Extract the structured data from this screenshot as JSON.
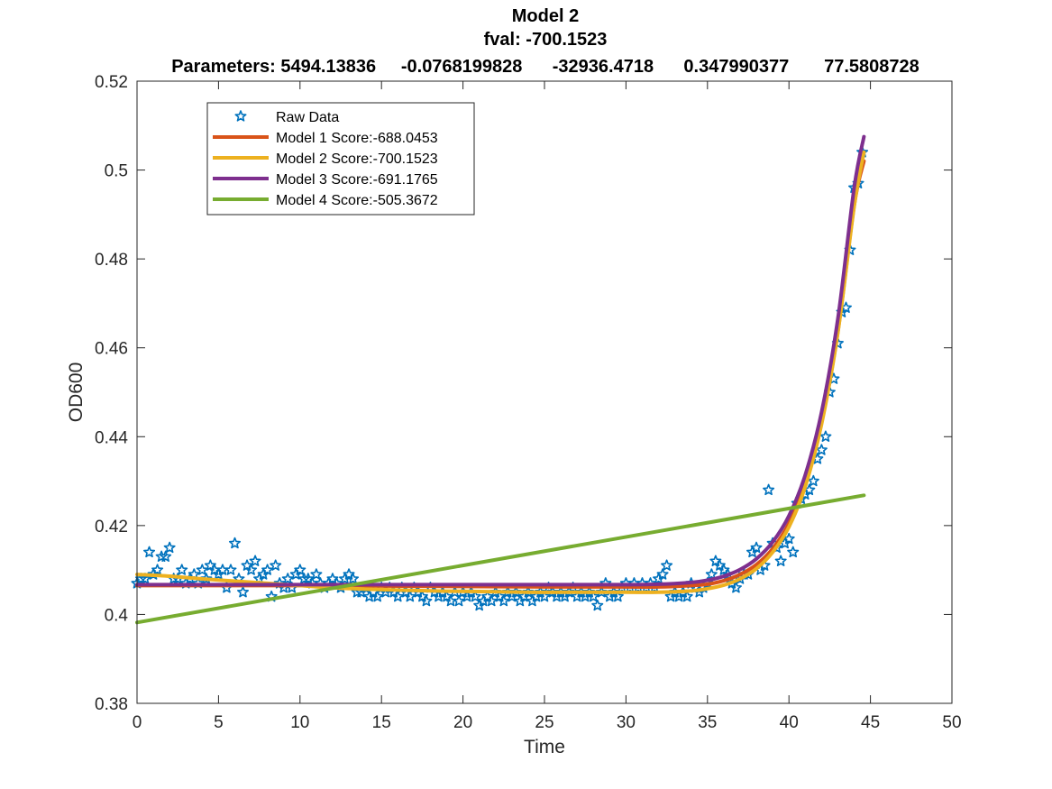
{
  "chart_data": {
    "type": "line",
    "title": "Model 2",
    "subtitle": "fval: -700.1523",
    "parameters_line": "Parameters: 5494.13836     -0.0768199828      -32936.4718      0.347990377       77.5808728",
    "xlabel": "Time",
    "ylabel": "OD600",
    "xlim": [
      0,
      50
    ],
    "ylim": [
      0.38,
      0.52
    ],
    "xticks": [
      0,
      5,
      10,
      15,
      20,
      25,
      30,
      35,
      40,
      45,
      50
    ],
    "yticks": [
      0.38,
      0.4,
      0.42,
      0.44,
      0.46,
      0.48,
      0.5,
      0.52
    ],
    "xtick_labels": [
      "0",
      "5",
      "10",
      "15",
      "20",
      "25",
      "30",
      "35",
      "40",
      "45",
      "50"
    ],
    "ytick_labels": [
      "0.38",
      "0.4",
      "0.42",
      "0.44",
      "0.46",
      "0.48",
      "0.5",
      "0.52"
    ],
    "grid": false,
    "legend_position": "top-left",
    "raw_data": {
      "name": "Raw Data",
      "marker": "star",
      "color": "#0072BD",
      "points": [
        [
          0.0,
          0.407
        ],
        [
          0.25,
          0.408
        ],
        [
          0.5,
          0.408
        ],
        [
          0.75,
          0.414
        ],
        [
          1.0,
          0.409
        ],
        [
          1.25,
          0.41
        ],
        [
          1.5,
          0.413
        ],
        [
          1.75,
          0.413
        ],
        [
          2.0,
          0.415
        ],
        [
          2.25,
          0.408
        ],
        [
          2.5,
          0.408
        ],
        [
          2.75,
          0.41
        ],
        [
          3.0,
          0.407
        ],
        [
          3.25,
          0.408
        ],
        [
          3.5,
          0.409
        ],
        [
          3.75,
          0.407
        ],
        [
          4.0,
          0.41
        ],
        [
          4.25,
          0.408
        ],
        [
          4.5,
          0.411
        ],
        [
          4.75,
          0.41
        ],
        [
          5.0,
          0.409
        ],
        [
          5.25,
          0.41
        ],
        [
          5.5,
          0.406
        ],
        [
          5.75,
          0.41
        ],
        [
          6.0,
          0.416
        ],
        [
          6.25,
          0.408
        ],
        [
          6.5,
          0.405
        ],
        [
          6.75,
          0.411
        ],
        [
          7.0,
          0.41
        ],
        [
          7.25,
          0.412
        ],
        [
          7.5,
          0.408
        ],
        [
          7.75,
          0.409
        ],
        [
          8.0,
          0.41
        ],
        [
          8.25,
          0.404
        ],
        [
          8.5,
          0.411
        ],
        [
          8.75,
          0.407
        ],
        [
          9.0,
          0.406
        ],
        [
          9.25,
          0.408
        ],
        [
          9.5,
          0.406
        ],
        [
          9.75,
          0.409
        ],
        [
          10.0,
          0.41
        ],
        [
          10.25,
          0.408
        ],
        [
          10.5,
          0.408
        ],
        [
          10.75,
          0.407
        ],
        [
          11.0,
          0.409
        ],
        [
          11.25,
          0.407
        ],
        [
          11.5,
          0.406
        ],
        [
          11.75,
          0.407
        ],
        [
          12.0,
          0.408
        ],
        [
          12.25,
          0.407
        ],
        [
          12.5,
          0.406
        ],
        [
          12.75,
          0.408
        ],
        [
          13.0,
          0.409
        ],
        [
          13.25,
          0.408
        ],
        [
          13.5,
          0.405
        ],
        [
          13.75,
          0.405
        ],
        [
          14.0,
          0.406
        ],
        [
          14.25,
          0.404
        ],
        [
          14.5,
          0.405
        ],
        [
          14.75,
          0.404
        ],
        [
          15.0,
          0.406
        ],
        [
          15.25,
          0.405
        ],
        [
          15.5,
          0.406
        ],
        [
          15.75,
          0.405
        ],
        [
          16.0,
          0.404
        ],
        [
          16.25,
          0.406
        ],
        [
          16.5,
          0.405
        ],
        [
          16.75,
          0.404
        ],
        [
          17.0,
          0.406
        ],
        [
          17.25,
          0.405
        ],
        [
          17.5,
          0.404
        ],
        [
          17.75,
          0.403
        ],
        [
          18.0,
          0.406
        ],
        [
          18.25,
          0.405
        ],
        [
          18.5,
          0.404
        ],
        [
          18.75,
          0.405
        ],
        [
          19.0,
          0.404
        ],
        [
          19.25,
          0.403
        ],
        [
          19.5,
          0.405
        ],
        [
          19.75,
          0.403
        ],
        [
          20.0,
          0.405
        ],
        [
          20.25,
          0.404
        ],
        [
          20.5,
          0.405
        ],
        [
          20.75,
          0.404
        ],
        [
          21.0,
          0.402
        ],
        [
          21.25,
          0.403
        ],
        [
          21.5,
          0.404
        ],
        [
          21.75,
          0.403
        ],
        [
          22.0,
          0.405
        ],
        [
          22.25,
          0.404
        ],
        [
          22.5,
          0.403
        ],
        [
          22.75,
          0.405
        ],
        [
          23.0,
          0.404
        ],
        [
          23.25,
          0.405
        ],
        [
          23.5,
          0.403
        ],
        [
          23.75,
          0.404
        ],
        [
          24.0,
          0.405
        ],
        [
          24.25,
          0.403
        ],
        [
          24.5,
          0.404
        ],
        [
          24.75,
          0.405
        ],
        [
          25.0,
          0.404
        ],
        [
          25.25,
          0.406
        ],
        [
          25.5,
          0.405
        ],
        [
          25.75,
          0.404
        ],
        [
          26.0,
          0.405
        ],
        [
          26.25,
          0.404
        ],
        [
          26.5,
          0.405
        ],
        [
          26.75,
          0.406
        ],
        [
          27.0,
          0.404
        ],
        [
          27.25,
          0.405
        ],
        [
          27.5,
          0.404
        ],
        [
          27.75,
          0.405
        ],
        [
          28.0,
          0.404
        ],
        [
          28.25,
          0.402
        ],
        [
          28.5,
          0.405
        ],
        [
          28.75,
          0.407
        ],
        [
          29.0,
          0.404
        ],
        [
          29.25,
          0.405
        ],
        [
          29.5,
          0.404
        ],
        [
          29.75,
          0.406
        ],
        [
          30.0,
          0.407
        ],
        [
          30.25,
          0.406
        ],
        [
          30.5,
          0.407
        ],
        [
          30.75,
          0.406
        ],
        [
          31.0,
          0.407
        ],
        [
          31.25,
          0.406
        ],
        [
          31.5,
          0.407
        ],
        [
          31.75,
          0.406
        ],
        [
          32.0,
          0.408
        ],
        [
          32.25,
          0.409
        ],
        [
          32.5,
          0.411
        ],
        [
          32.75,
          0.404
        ],
        [
          33.0,
          0.405
        ],
        [
          33.25,
          0.404
        ],
        [
          33.5,
          0.405
        ],
        [
          33.75,
          0.404
        ],
        [
          34.0,
          0.407
        ],
        [
          34.25,
          0.406
        ],
        [
          34.5,
          0.405
        ],
        [
          34.75,
          0.406
        ],
        [
          35.0,
          0.407
        ],
        [
          35.25,
          0.409
        ],
        [
          35.5,
          0.412
        ],
        [
          35.75,
          0.411
        ],
        [
          36.0,
          0.41
        ],
        [
          36.25,
          0.409
        ],
        [
          36.5,
          0.407
        ],
        [
          36.75,
          0.406
        ],
        [
          37.0,
          0.408
        ],
        [
          37.25,
          0.409
        ],
        [
          37.5,
          0.409
        ],
        [
          37.75,
          0.414
        ],
        [
          38.0,
          0.415
        ],
        [
          38.25,
          0.41
        ],
        [
          38.5,
          0.411
        ],
        [
          38.75,
          0.428
        ],
        [
          39.0,
          0.416
        ],
        [
          39.25,
          0.415
        ],
        [
          39.5,
          0.412
        ],
        [
          39.75,
          0.416
        ],
        [
          40.0,
          0.417
        ],
        [
          40.25,
          0.414
        ],
        [
          40.5,
          0.425
        ],
        [
          40.75,
          0.426
        ],
        [
          41.0,
          0.427
        ],
        [
          41.25,
          0.428
        ],
        [
          41.5,
          0.43
        ],
        [
          41.75,
          0.435
        ],
        [
          42.0,
          0.437
        ],
        [
          42.25,
          0.44
        ],
        [
          42.5,
          0.45
        ],
        [
          42.75,
          0.453
        ],
        [
          43.0,
          0.461
        ],
        [
          43.25,
          0.468
        ],
        [
          43.5,
          0.469
        ],
        [
          43.75,
          0.482
        ],
        [
          44.0,
          0.496
        ],
        [
          44.25,
          0.497
        ],
        [
          44.5,
          0.504
        ]
      ]
    },
    "series": [
      {
        "name": "Model 1 Score:-688.0453",
        "color": "#D95319",
        "points": [
          [
            0,
            0.4065
          ],
          [
            5,
            0.4065
          ],
          [
            10,
            0.4065
          ],
          [
            15,
            0.4064
          ],
          [
            20,
            0.4063
          ],
          [
            25,
            0.4062
          ],
          [
            30,
            0.4062
          ],
          [
            32,
            0.4062
          ],
          [
            34,
            0.4065
          ],
          [
            35,
            0.4068
          ],
          [
            36,
            0.4076
          ],
          [
            37,
            0.409
          ],
          [
            38,
            0.4112
          ],
          [
            39,
            0.4148
          ],
          [
            40,
            0.4205
          ],
          [
            41,
            0.4295
          ],
          [
            42,
            0.4432
          ],
          [
            43,
            0.4636
          ],
          [
            44,
            0.492
          ],
          [
            44.6,
            0.502
          ]
        ]
      },
      {
        "name": "Model 2 Score:-700.1523",
        "color": "#EDB120",
        "points": [
          [
            0,
            0.409
          ],
          [
            2,
            0.4086
          ],
          [
            4,
            0.408
          ],
          [
            6,
            0.4075
          ],
          [
            8,
            0.407
          ],
          [
            10,
            0.4065
          ],
          [
            12,
            0.406
          ],
          [
            14,
            0.4057
          ],
          [
            16,
            0.4055
          ],
          [
            18,
            0.4053
          ],
          [
            20,
            0.4052
          ],
          [
            22,
            0.4051
          ],
          [
            24,
            0.405
          ],
          [
            26,
            0.405
          ],
          [
            28,
            0.405
          ],
          [
            30,
            0.405
          ],
          [
            32,
            0.405
          ],
          [
            34,
            0.4053
          ],
          [
            35,
            0.4058
          ],
          [
            36,
            0.4066
          ],
          [
            37,
            0.408
          ],
          [
            38,
            0.4103
          ],
          [
            39,
            0.414
          ],
          [
            40,
            0.4197
          ],
          [
            41,
            0.4288
          ],
          [
            42,
            0.4428
          ],
          [
            43,
            0.4634
          ],
          [
            44,
            0.4918
          ],
          [
            44.6,
            0.504
          ]
        ]
      },
      {
        "name": "Model 3 Score:-691.1765",
        "color": "#7E2F8E",
        "points": [
          [
            0,
            0.4067
          ],
          [
            5,
            0.4067
          ],
          [
            10,
            0.4067
          ],
          [
            15,
            0.4067
          ],
          [
            20,
            0.4067
          ],
          [
            25,
            0.4067
          ],
          [
            30,
            0.4067
          ],
          [
            32,
            0.4068
          ],
          [
            34,
            0.4072
          ],
          [
            35,
            0.4077
          ],
          [
            36,
            0.4086
          ],
          [
            37,
            0.4101
          ],
          [
            38,
            0.4125
          ],
          [
            39,
            0.4163
          ],
          [
            40,
            0.4222
          ],
          [
            41,
            0.4314
          ],
          [
            42,
            0.4455
          ],
          [
            43,
            0.4665
          ],
          [
            44,
            0.496
          ],
          [
            44.6,
            0.5075
          ]
        ]
      },
      {
        "name": "Model 4 Score:-505.3672",
        "color": "#77AC30",
        "points": [
          [
            0,
            0.3982
          ],
          [
            44.6,
            0.4268
          ]
        ]
      }
    ]
  }
}
